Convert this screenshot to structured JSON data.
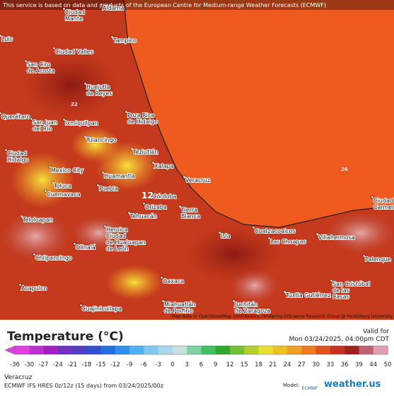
{
  "banner": "This service is based on data and products of the European Centre for Medium-range Weather Forecasts (ECMWF)",
  "attribution": "Map data © OpenStreetMap contributors, rendering GIScience Research Group @ Heidelberg University",
  "cities": [
    {
      "lines": [
        "Ciudad",
        "Mante"
      ]
    },
    {
      "lines": [
        "Aldama"
      ]
    },
    {
      "lines": [
        "Tampico"
      ]
    },
    {
      "lines": [
        "Luis"
      ]
    },
    {
      "lines": [
        "Ciudad Valles"
      ]
    },
    {
      "lines": [
        "San Ciro",
        "de Acosta"
      ]
    },
    {
      "lines": [
        "Huejutla",
        "de Reyes"
      ]
    },
    {
      "lines": [
        "Poza Rica",
        "de Hidalgo"
      ]
    },
    {
      "lines": [
        "Querétaro"
      ]
    },
    {
      "lines": [
        "San Juan",
        "del Río"
      ]
    },
    {
      "lines": [
        "Ixmiquilpan"
      ]
    },
    {
      "lines": [
        "Tulancingo"
      ]
    },
    {
      "lines": [
        "Teziutlán"
      ]
    },
    {
      "lines": [
        "Ciudad",
        "Hidalgo"
      ]
    },
    {
      "lines": [
        "Xalapa"
      ]
    },
    {
      "lines": [
        "Mexico City"
      ]
    },
    {
      "lines": [
        "Huamantla"
      ]
    },
    {
      "lines": [
        "Veracruz"
      ]
    },
    {
      "lines": [
        "Toluca"
      ]
    },
    {
      "lines": [
        "Puebla"
      ]
    },
    {
      "lines": [
        "Cuernavaca"
      ]
    },
    {
      "lines": [
        "Córdoba"
      ]
    },
    {
      "lines": [
        "Orizaba"
      ]
    },
    {
      "lines": [
        "Tierra",
        "Blanca"
      ]
    },
    {
      "lines": [
        "Tehuacán"
      ]
    },
    {
      "lines": [
        "Teloloapan"
      ]
    },
    {
      "lines": [
        "Coatzacoalcos"
      ]
    },
    {
      "lines": [
        "Heroica",
        "Ciudad",
        "de Huajuapan",
        "de León"
      ]
    },
    {
      "lines": [
        "Isla"
      ]
    },
    {
      "lines": [
        "Las Choapas"
      ]
    },
    {
      "lines": [
        "Villahermosa"
      ]
    },
    {
      "lines": [
        "Olinalá"
      ]
    },
    {
      "lines": [
        "Chilpancingo"
      ]
    },
    {
      "lines": [
        "Palenque"
      ]
    },
    {
      "lines": [
        "Ciudad",
        "Carmen"
      ]
    },
    {
      "lines": [
        "Acapulco"
      ]
    },
    {
      "lines": [
        "Oaxaca"
      ]
    },
    {
      "lines": [
        "San Cristóbal",
        "de las",
        "Casas"
      ]
    },
    {
      "lines": [
        "Tuxtla Gutiérrez"
      ]
    },
    {
      "lines": [
        "Miahuatlán",
        "de Porfirio"
      ]
    },
    {
      "lines": [
        "Juchitán",
        "de Zaragoza"
      ]
    },
    {
      "lines": [
        "Cuajinicuilapa"
      ]
    }
  ],
  "contour_labels": [
    12,
    26,
    22
  ],
  "legend": {
    "title": "Temperature (°C)",
    "valid_label": "Valid for",
    "valid_time": "Mon 03/24/2025, 04:00pm CDT",
    "ticks": [
      -36,
      -30,
      -27,
      -24,
      -21,
      -18,
      -15,
      -12,
      -9,
      -6,
      -3,
      0,
      3,
      6,
      9,
      12,
      15,
      18,
      21,
      24,
      27,
      30,
      33,
      36,
      39,
      44,
      50
    ]
  },
  "footer": {
    "location": "Veracruz",
    "run": "ECMWF IFS HRES 0z/12z (15 days) from 03/24/2025/00z",
    "model_label": "Model:",
    "model": "ECMWF",
    "brand": "weather.us"
  }
}
